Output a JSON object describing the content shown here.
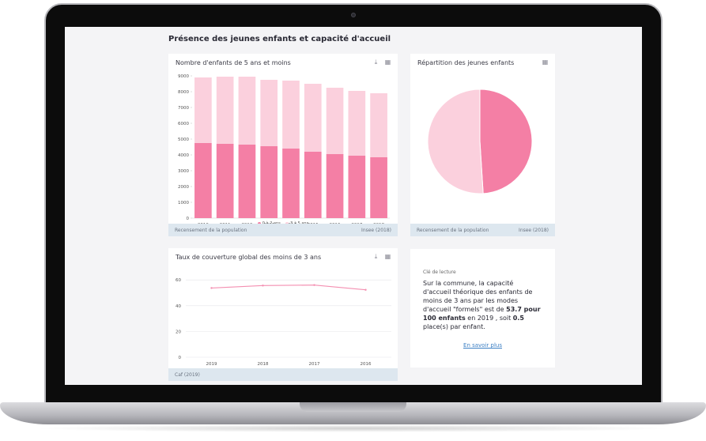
{
  "page": {
    "title": "Présence des jeunes enfants et capacité d'accueil"
  },
  "cards": {
    "bar": {
      "title": "Nombre d'enfants de 5 ans et moins",
      "footer_left": "Recensement de la population",
      "footer_right": "Insee (2018)",
      "legend": [
        "0 à 2 ans",
        "3 à 5 ans"
      ]
    },
    "pie": {
      "title": "Répartition des jeunes enfants",
      "footer_left": "Recensement de la population",
      "footer_right": "Insee (2018)"
    },
    "line": {
      "title": "Taux de couverture global des moins de 3 ans",
      "footer_left": "Caf (2019)"
    },
    "key": {
      "label": "Clé de lecture",
      "text_1": "Sur la commune, la capacité d'accueil théorique des enfants de moins de 3 ans par les modes d'accueil \"formels\" est de ",
      "bold_1": "53.7 pour 100 enfants",
      "text_2": " en 2019 , soit ",
      "bold_2": "0.5",
      "text_3": " place(s) par enfant.",
      "link": "En savoir plus"
    }
  },
  "icons": {
    "download": "download-icon",
    "image": "image-icon"
  },
  "colors": {
    "dark_pink": "#f47fa5",
    "light_pink": "#fbd0dd",
    "line": "#f48fb1"
  },
  "chart_data": [
    {
      "type": "bar",
      "stacked": true,
      "categories": [
        "2010",
        "2011",
        "2012",
        "2013",
        "2014",
        "2015",
        "2016",
        "2017",
        "2018"
      ],
      "series": [
        {
          "name": "0 à 2 ans",
          "values": [
            4750,
            4700,
            4650,
            4550,
            4400,
            4200,
            4050,
            3950,
            3850
          ]
        },
        {
          "name": "3 à 5 ans",
          "values": [
            4150,
            4250,
            4300,
            4200,
            4300,
            4300,
            4200,
            4100,
            4050
          ]
        }
      ],
      "yticks": [
        0,
        1000,
        2000,
        3000,
        4000,
        5000,
        6000,
        7000,
        8000,
        9000
      ],
      "ylim": [
        0,
        9000
      ],
      "legend": "bottom"
    },
    {
      "type": "pie",
      "series": [
        {
          "name": "0 à 2 ans",
          "value": 49
        },
        {
          "name": "3 à 5 ans",
          "value": 51
        }
      ]
    },
    {
      "type": "line",
      "categories": [
        "2019",
        "2018",
        "2017",
        "2016"
      ],
      "values": [
        53.7,
        55.6,
        56.0,
        52.3
      ],
      "yticks": [
        0,
        20,
        40,
        60
      ],
      "ylim": [
        0,
        65
      ]
    }
  ]
}
